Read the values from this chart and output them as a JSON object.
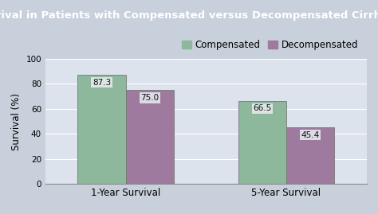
{
  "title": "Survival in Patients with Compensated versus Decompensated Cirrhosis",
  "title_bg_color": "#636d78",
  "title_text_color": "#ffffff",
  "plot_bg_color": "#dce3ec",
  "figure_bg_color": "#c8d0db",
  "categories": [
    "1-Year Survival",
    "5-Year Survival"
  ],
  "series": [
    {
      "name": "Compensated",
      "values": [
        87.3,
        66.5
      ],
      "color": "#8db89b"
    },
    {
      "name": "Decompensated",
      "values": [
        75.0,
        45.4
      ],
      "color": "#9e7a9e"
    }
  ],
  "ylabel": "Survival (%)",
  "ylim": [
    0,
    100
  ],
  "yticks": [
    0,
    20,
    40,
    60,
    80,
    100
  ],
  "bar_width": 0.3,
  "label_fontsize": 7.5,
  "value_label_fontsize": 7.5,
  "title_fontsize": 9.5,
  "legend_fontsize": 8.5,
  "ylabel_fontsize": 8.5,
  "xtick_fontsize": 8.5
}
